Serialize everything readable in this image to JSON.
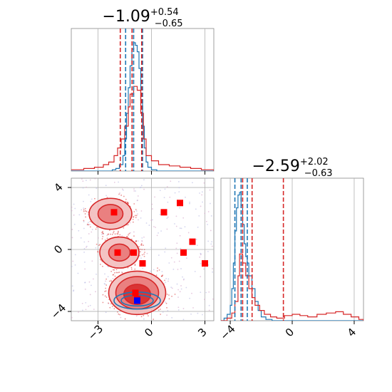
{
  "chart_data": [
    {
      "type": "histogram",
      "panel": "param-1-marginal",
      "title_median": "−1.09",
      "title_plus": "+0.54",
      "title_minus": "−0.65",
      "xlim": [
        -4.5,
        3.5
      ],
      "x_ticks": [
        -3,
        0,
        3
      ],
      "grid": true,
      "series": [
        {
          "color": "#1f77b4",
          "quantiles": [
            -1.45,
            -1.0,
            -0.5
          ],
          "bins": [
            [
              -4.5,
              0
            ],
            [
              -2.4,
              0
            ],
            [
              -2.2,
              0.01
            ],
            [
              -2.0,
              0.02
            ],
            [
              -1.8,
              0.05
            ],
            [
              -1.6,
              0.12
            ],
            [
              -1.5,
              0.25
            ],
            [
              -1.4,
              0.45
            ],
            [
              -1.3,
              0.65
            ],
            [
              -1.2,
              0.82
            ],
            [
              -1.1,
              0.95
            ],
            [
              -1.0,
              1.0
            ],
            [
              -0.9,
              0.98
            ],
            [
              -0.8,
              0.93
            ],
            [
              -0.7,
              0.8
            ],
            [
              -0.6,
              0.55
            ],
            [
              -0.5,
              0.35
            ],
            [
              -0.4,
              0.18
            ],
            [
              -0.3,
              0.07
            ],
            [
              -0.2,
              0.03
            ],
            [
              0.0,
              0.01
            ],
            [
              0.3,
              0
            ],
            [
              3.5,
              0
            ]
          ]
        },
        {
          "color": "#d62728",
          "quantiles": [
            -1.75,
            -1.09,
            -0.55
          ],
          "bins": [
            [
              -4.5,
              0.01
            ],
            [
              -3.8,
              0.02
            ],
            [
              -3.2,
              0.03
            ],
            [
              -2.7,
              0.05
            ],
            [
              -2.4,
              0.07
            ],
            [
              -2.1,
              0.12
            ],
            [
              -1.9,
              0.18
            ],
            [
              -1.7,
              0.25
            ],
            [
              -1.5,
              0.35
            ],
            [
              -1.3,
              0.5
            ],
            [
              -1.2,
              0.6
            ],
            [
              -1.0,
              0.66
            ],
            [
              -0.8,
              0.63
            ],
            [
              -0.6,
              0.45
            ],
            [
              -0.45,
              0.25
            ],
            [
              -0.3,
              0.12
            ],
            [
              0.0,
              0.08
            ],
            [
              0.4,
              0.05
            ],
            [
              1.0,
              0.04
            ],
            [
              1.6,
              0.03
            ],
            [
              2.2,
              0.02
            ],
            [
              2.8,
              0.01
            ],
            [
              3.5,
              0
            ]
          ]
        }
      ]
    },
    {
      "type": "histogram",
      "panel": "param-2-marginal",
      "title_median": "−2.59",
      "title_plus": "+2.02",
      "title_minus": "−0.63",
      "xlim": [
        -4.6,
        4.6
      ],
      "x_ticks": [
        -4,
        0,
        4
      ],
      "grid": true,
      "series": [
        {
          "color": "#1f77b4",
          "quantiles": [
            -3.7,
            -3.3,
            -2.9
          ],
          "bins": [
            [
              -4.6,
              0
            ],
            [
              -4.4,
              0.02
            ],
            [
              -4.2,
              0.05
            ],
            [
              -4.0,
              0.12
            ],
            [
              -3.9,
              0.25
            ],
            [
              -3.8,
              0.45
            ],
            [
              -3.7,
              0.7
            ],
            [
              -3.6,
              0.88
            ],
            [
              -3.5,
              0.98
            ],
            [
              -3.4,
              1.0
            ],
            [
              -3.3,
              0.9
            ],
            [
              -3.2,
              0.75
            ],
            [
              -3.1,
              0.6
            ],
            [
              -3.0,
              0.5
            ],
            [
              -2.9,
              0.45
            ],
            [
              -2.8,
              0.35
            ],
            [
              -2.6,
              0.25
            ],
            [
              -2.4,
              0.15
            ],
            [
              -2.2,
              0.08
            ],
            [
              -2.0,
              0.03
            ],
            [
              -1.7,
              0.01
            ],
            [
              -1.3,
              0
            ],
            [
              4.6,
              0
            ]
          ]
        },
        {
          "color": "#d62728",
          "quantiles": [
            -3.2,
            -2.59,
            -0.57
          ],
          "bins": [
            [
              -4.6,
              0
            ],
            [
              -4.2,
              0.02
            ],
            [
              -3.9,
              0.06
            ],
            [
              -3.7,
              0.15
            ],
            [
              -3.5,
              0.35
            ],
            [
              -3.4,
              0.52
            ],
            [
              -3.2,
              0.45
            ],
            [
              -3.0,
              0.35
            ],
            [
              -2.8,
              0.25
            ],
            [
              -2.6,
              0.18
            ],
            [
              -2.4,
              0.12
            ],
            [
              -2.1,
              0.08
            ],
            [
              -1.8,
              0.05
            ],
            [
              -1.4,
              0.03
            ],
            [
              -1.0,
              0.02
            ],
            [
              -0.5,
              0.04
            ],
            [
              0.0,
              0.05
            ],
            [
              0.5,
              0.04
            ],
            [
              1.0,
              0.03
            ],
            [
              1.6,
              0.05
            ],
            [
              2.2,
              0.06
            ],
            [
              2.8,
              0.07
            ],
            [
              3.3,
              0.05
            ],
            [
              3.8,
              0.03
            ],
            [
              4.3,
              0.01
            ],
            [
              4.6,
              0
            ]
          ]
        }
      ]
    },
    {
      "type": "scatter",
      "panel": "param-1-vs-param-2",
      "xlim": [
        -4.5,
        3.5
      ],
      "ylim": [
        -4.6,
        4.6
      ],
      "x_ticks": [
        -3,
        0,
        3
      ],
      "y_ticks": [
        -4,
        0,
        4
      ],
      "grid": true,
      "red_squares": [
        [
          -2.1,
          2.4
        ],
        [
          -1.9,
          -0.2
        ],
        [
          -1.0,
          -0.2
        ],
        [
          -0.5,
          -0.9
        ],
        [
          -0.9,
          -2.8
        ],
        [
          -0.8,
          -3.2
        ],
        [
          0.7,
          2.4
        ],
        [
          1.6,
          3.0
        ],
        [
          1.8,
          -0.2
        ],
        [
          2.3,
          0.5
        ],
        [
          3.0,
          -0.9
        ]
      ],
      "blue_squares": [
        [
          -0.8,
          -3.3
        ]
      ],
      "contours": {
        "red": [
          {
            "cx": -2.3,
            "cy": 2.3,
            "rx": 1.2,
            "ry": 1.0,
            "level": 1
          },
          {
            "cx": -2.3,
            "cy": 2.3,
            "rx": 0.7,
            "ry": 0.6,
            "level": 2
          },
          {
            "cx": -1.8,
            "cy": -0.2,
            "rx": 1.1,
            "ry": 1.0,
            "level": 1
          },
          {
            "cx": -1.8,
            "cy": -0.2,
            "rx": 0.6,
            "ry": 0.55,
            "level": 2
          },
          {
            "cx": -0.8,
            "cy": -2.8,
            "rx": 1.6,
            "ry": 1.4,
            "level": 1
          },
          {
            "cx": -0.8,
            "cy": -2.8,
            "rx": 1.2,
            "ry": 1.05,
            "level": 2
          },
          {
            "cx": -0.8,
            "cy": -2.9,
            "rx": 0.75,
            "ry": 0.65,
            "level": 3
          }
        ],
        "blue": [
          {
            "cx": -0.8,
            "cy": -3.3,
            "rx": 1.3,
            "ry": 0.55
          },
          {
            "cx": -0.8,
            "cy": -3.3,
            "rx": 0.9,
            "ry": 0.35
          }
        ]
      }
    }
  ]
}
